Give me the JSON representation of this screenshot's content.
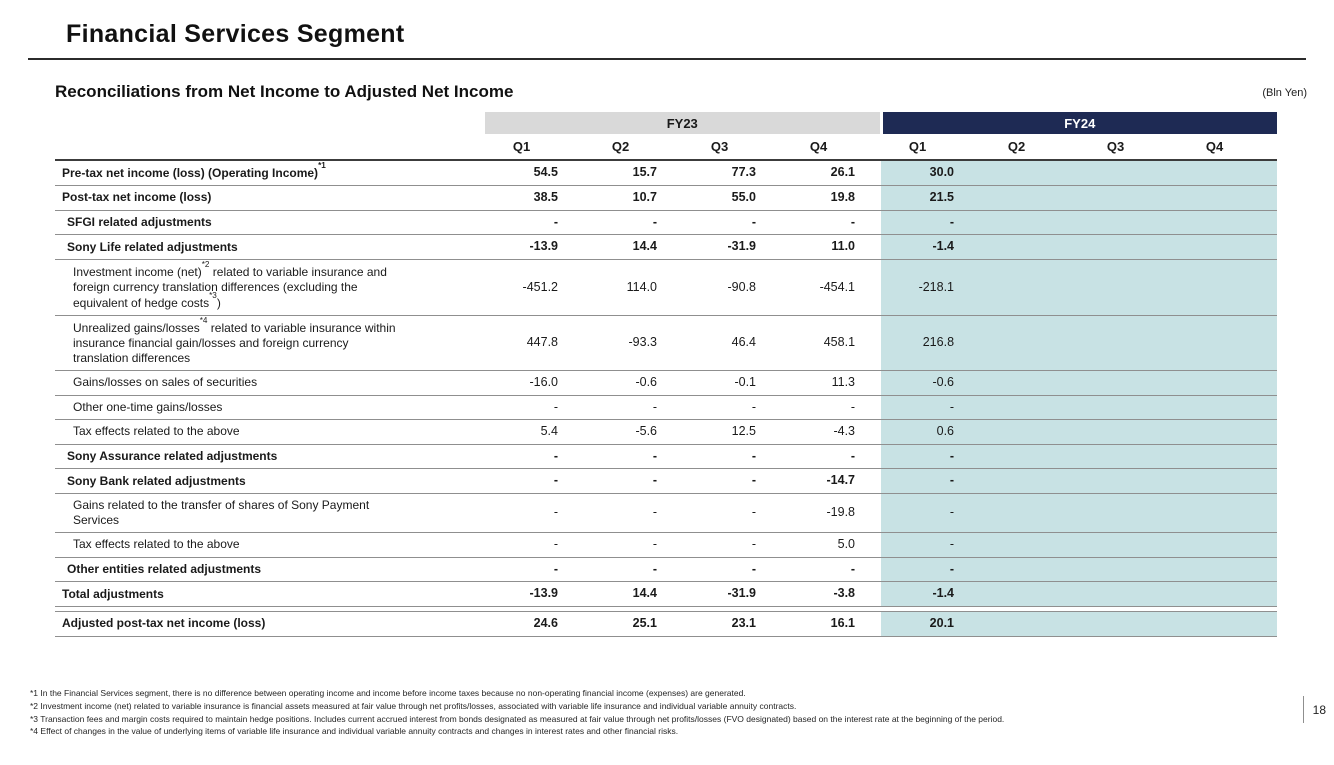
{
  "slide": {
    "title": "Financial Services Segment",
    "subtitle": "Reconciliations from Net Income to Adjusted Net Income",
    "unit_label": "(Bln Yen)",
    "page_number": "18"
  },
  "colors": {
    "fy23_band": "#d9d9d9",
    "fy24_band": "#1e2a54",
    "fy24_column": "#c8e2e4"
  },
  "table": {
    "groups": [
      {
        "label": "FY23"
      },
      {
        "label": "FY24"
      }
    ],
    "quarters": [
      "Q1",
      "Q2",
      "Q3",
      "Q4",
      "Q1",
      "Q2",
      "Q3",
      "Q4"
    ],
    "rows": [
      {
        "label": "Pre-tax net income (loss) (Operating Income)*1",
        "bold": true,
        "indent": 0,
        "values": [
          "54.5",
          "15.7",
          "77.3",
          "26.1",
          "30.0",
          "",
          "",
          ""
        ]
      },
      {
        "label": "Post-tax net income (loss)",
        "bold": true,
        "indent": 0,
        "values": [
          "38.5",
          "10.7",
          "55.0",
          "19.8",
          "21.5",
          "",
          "",
          ""
        ]
      },
      {
        "label": "SFGI related adjustments",
        "bold": true,
        "indent": 1,
        "values": [
          "-",
          "-",
          "-",
          "-",
          "-",
          "",
          "",
          ""
        ]
      },
      {
        "label": "Sony Life related adjustments",
        "bold": true,
        "indent": 1,
        "values": [
          "-13.9",
          "14.4",
          "-31.9",
          "11.0",
          "-1.4",
          "",
          "",
          ""
        ]
      },
      {
        "label": "Investment income (net)*2 related to variable insurance and foreign currency translation differences (excluding the equivalent of hedge costs*3)",
        "bold": false,
        "indent": 2,
        "values": [
          "-451.2",
          "114.0",
          "-90.8",
          "-454.1",
          "-218.1",
          "",
          "",
          ""
        ]
      },
      {
        "label": "Unrealized gains/losses*4 related to variable insurance within insurance financial gain/losses and foreign currency translation differences",
        "bold": false,
        "indent": 2,
        "values": [
          "447.8",
          "-93.3",
          "46.4",
          "458.1",
          "216.8",
          "",
          "",
          ""
        ]
      },
      {
        "label": "Gains/losses on sales of securities",
        "bold": false,
        "indent": 2,
        "values": [
          "-16.0",
          "-0.6",
          "-0.1",
          "11.3",
          "-0.6",
          "",
          "",
          ""
        ]
      },
      {
        "label": "Other one-time gains/losses",
        "bold": false,
        "indent": 2,
        "values": [
          "-",
          "-",
          "-",
          "-",
          "-",
          "",
          "",
          ""
        ]
      },
      {
        "label": "Tax effects related to the above",
        "bold": false,
        "indent": 2,
        "values": [
          "5.4",
          "-5.6",
          "12.5",
          "-4.3",
          "0.6",
          "",
          "",
          ""
        ]
      },
      {
        "label": "Sony Assurance related adjustments",
        "bold": true,
        "indent": 1,
        "values": [
          "-",
          "-",
          "-",
          "-",
          "-",
          "",
          "",
          ""
        ]
      },
      {
        "label": "Sony Bank related adjustments",
        "bold": true,
        "indent": 1,
        "values": [
          "-",
          "-",
          "-",
          "-14.7",
          "-",
          "",
          "",
          ""
        ]
      },
      {
        "label": "Gains related to the transfer of shares of Sony Payment Services",
        "bold": false,
        "indent": 2,
        "values": [
          "-",
          "-",
          "-",
          "-19.8",
          "-",
          "",
          "",
          ""
        ]
      },
      {
        "label": "Tax effects related to the above",
        "bold": false,
        "indent": 2,
        "values": [
          "-",
          "-",
          "-",
          "5.0",
          "-",
          "",
          "",
          ""
        ]
      },
      {
        "label": "Other entities related adjustments",
        "bold": true,
        "indent": 1,
        "values": [
          "-",
          "-",
          "-",
          "-",
          "-",
          "",
          "",
          ""
        ]
      },
      {
        "label": "Total adjustments",
        "bold": true,
        "indent": 0,
        "values": [
          "-13.9",
          "14.4",
          "-31.9",
          "-3.8",
          "-1.4",
          "",
          "",
          ""
        ]
      },
      {
        "label": "Adjusted post-tax net income (loss)",
        "bold": true,
        "indent": 0,
        "spacer_before": true,
        "values": [
          "24.6",
          "25.1",
          "23.1",
          "16.1",
          "20.1",
          "",
          "",
          ""
        ]
      }
    ]
  },
  "footnotes": [
    "*1 In the Financial Services segment, there is no difference between operating income and income before income taxes because no non-operating financial income (expenses) are generated.",
    "*2 Investment income (net) related to variable insurance is financial assets measured at fair value through net profits/losses, associated with variable life insurance and individual variable annuity contracts.",
    "*3 Transaction fees and margin costs required to maintain hedge positions. Includes current accrued interest from bonds designated as measured at fair value through net profits/losses (FVO designated) based on the interest rate at the beginning of the period.",
    "*4 Effect of changes in the value of underlying items of variable life insurance and individual variable annuity contracts and changes in interest rates and other financial risks."
  ]
}
